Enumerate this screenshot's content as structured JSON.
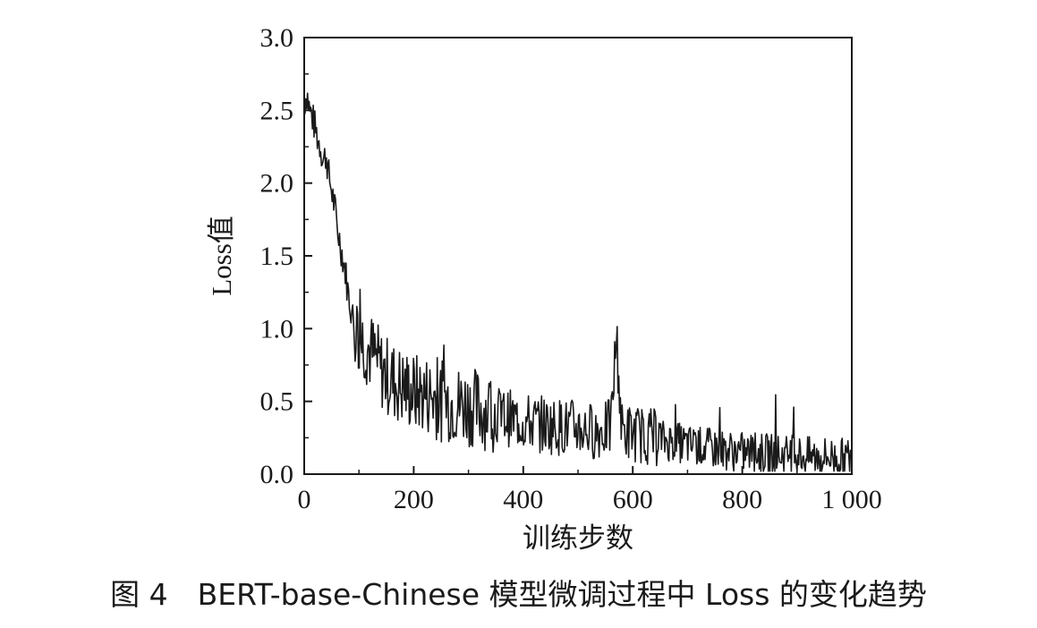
{
  "caption": "图 4　BERT-base-Chinese 模型微调过程中 Loss 的变化趋势",
  "chart_data": {
    "type": "line",
    "xlabel": "训练步数",
    "ylabel": "Loss值",
    "xlim": [
      0,
      1000
    ],
    "ylim": [
      0.0,
      3.0
    ],
    "x_ticks": [
      0,
      200,
      400,
      600,
      800,
      1000
    ],
    "x_tick_labels": [
      "0",
      "200",
      "400",
      "600",
      "800",
      "1 000"
    ],
    "y_ticks": [
      0.0,
      0.5,
      1.0,
      1.5,
      2.0,
      2.5,
      3.0
    ],
    "y_tick_labels": [
      "0.0",
      "0.5",
      "1.0",
      "1.5",
      "2.0",
      "2.5",
      "3.0"
    ],
    "grid": false,
    "line_color": "#1a1a1a",
    "series": [
      {
        "x": [
          0,
          5,
          10,
          15,
          20,
          25,
          30,
          35,
          40,
          45,
          50,
          55,
          60,
          65,
          70,
          75,
          80,
          85,
          90,
          95,
          100,
          110,
          120,
          130,
          140,
          150,
          160,
          170,
          180,
          190,
          200,
          210,
          220,
          230,
          240,
          250,
          260,
          270,
          280,
          290,
          300,
          320,
          340,
          360,
          380,
          400,
          420,
          440,
          460,
          480,
          500,
          520,
          540,
          560,
          570,
          580,
          600,
          620,
          640,
          660,
          680,
          700,
          720,
          740,
          760,
          780,
          800,
          820,
          840,
          860,
          880,
          900,
          920,
          940,
          960,
          980,
          1000
        ],
        "values": [
          2.55,
          2.62,
          2.5,
          2.45,
          2.38,
          2.3,
          2.25,
          2.15,
          2.2,
          2.05,
          1.95,
          1.85,
          1.7,
          1.6,
          1.5,
          1.4,
          1.25,
          1.15,
          1.05,
          1.0,
          0.95,
          0.9,
          0.85,
          0.8,
          0.72,
          0.68,
          0.65,
          0.62,
          0.6,
          0.58,
          0.56,
          0.55,
          0.55,
          0.54,
          0.52,
          0.5,
          0.5,
          0.49,
          0.48,
          0.48,
          0.47,
          0.45,
          0.43,
          0.4,
          0.38,
          0.36,
          0.35,
          0.34,
          0.33,
          0.32,
          0.32,
          0.3,
          0.3,
          0.32,
          0.95,
          0.3,
          0.28,
          0.27,
          0.25,
          0.23,
          0.22,
          0.2,
          0.19,
          0.18,
          0.17,
          0.16,
          0.15,
          0.15,
          0.14,
          0.14,
          0.13,
          0.13,
          0.12,
          0.12,
          0.12,
          0.11,
          0.11
        ]
      }
    ]
  }
}
